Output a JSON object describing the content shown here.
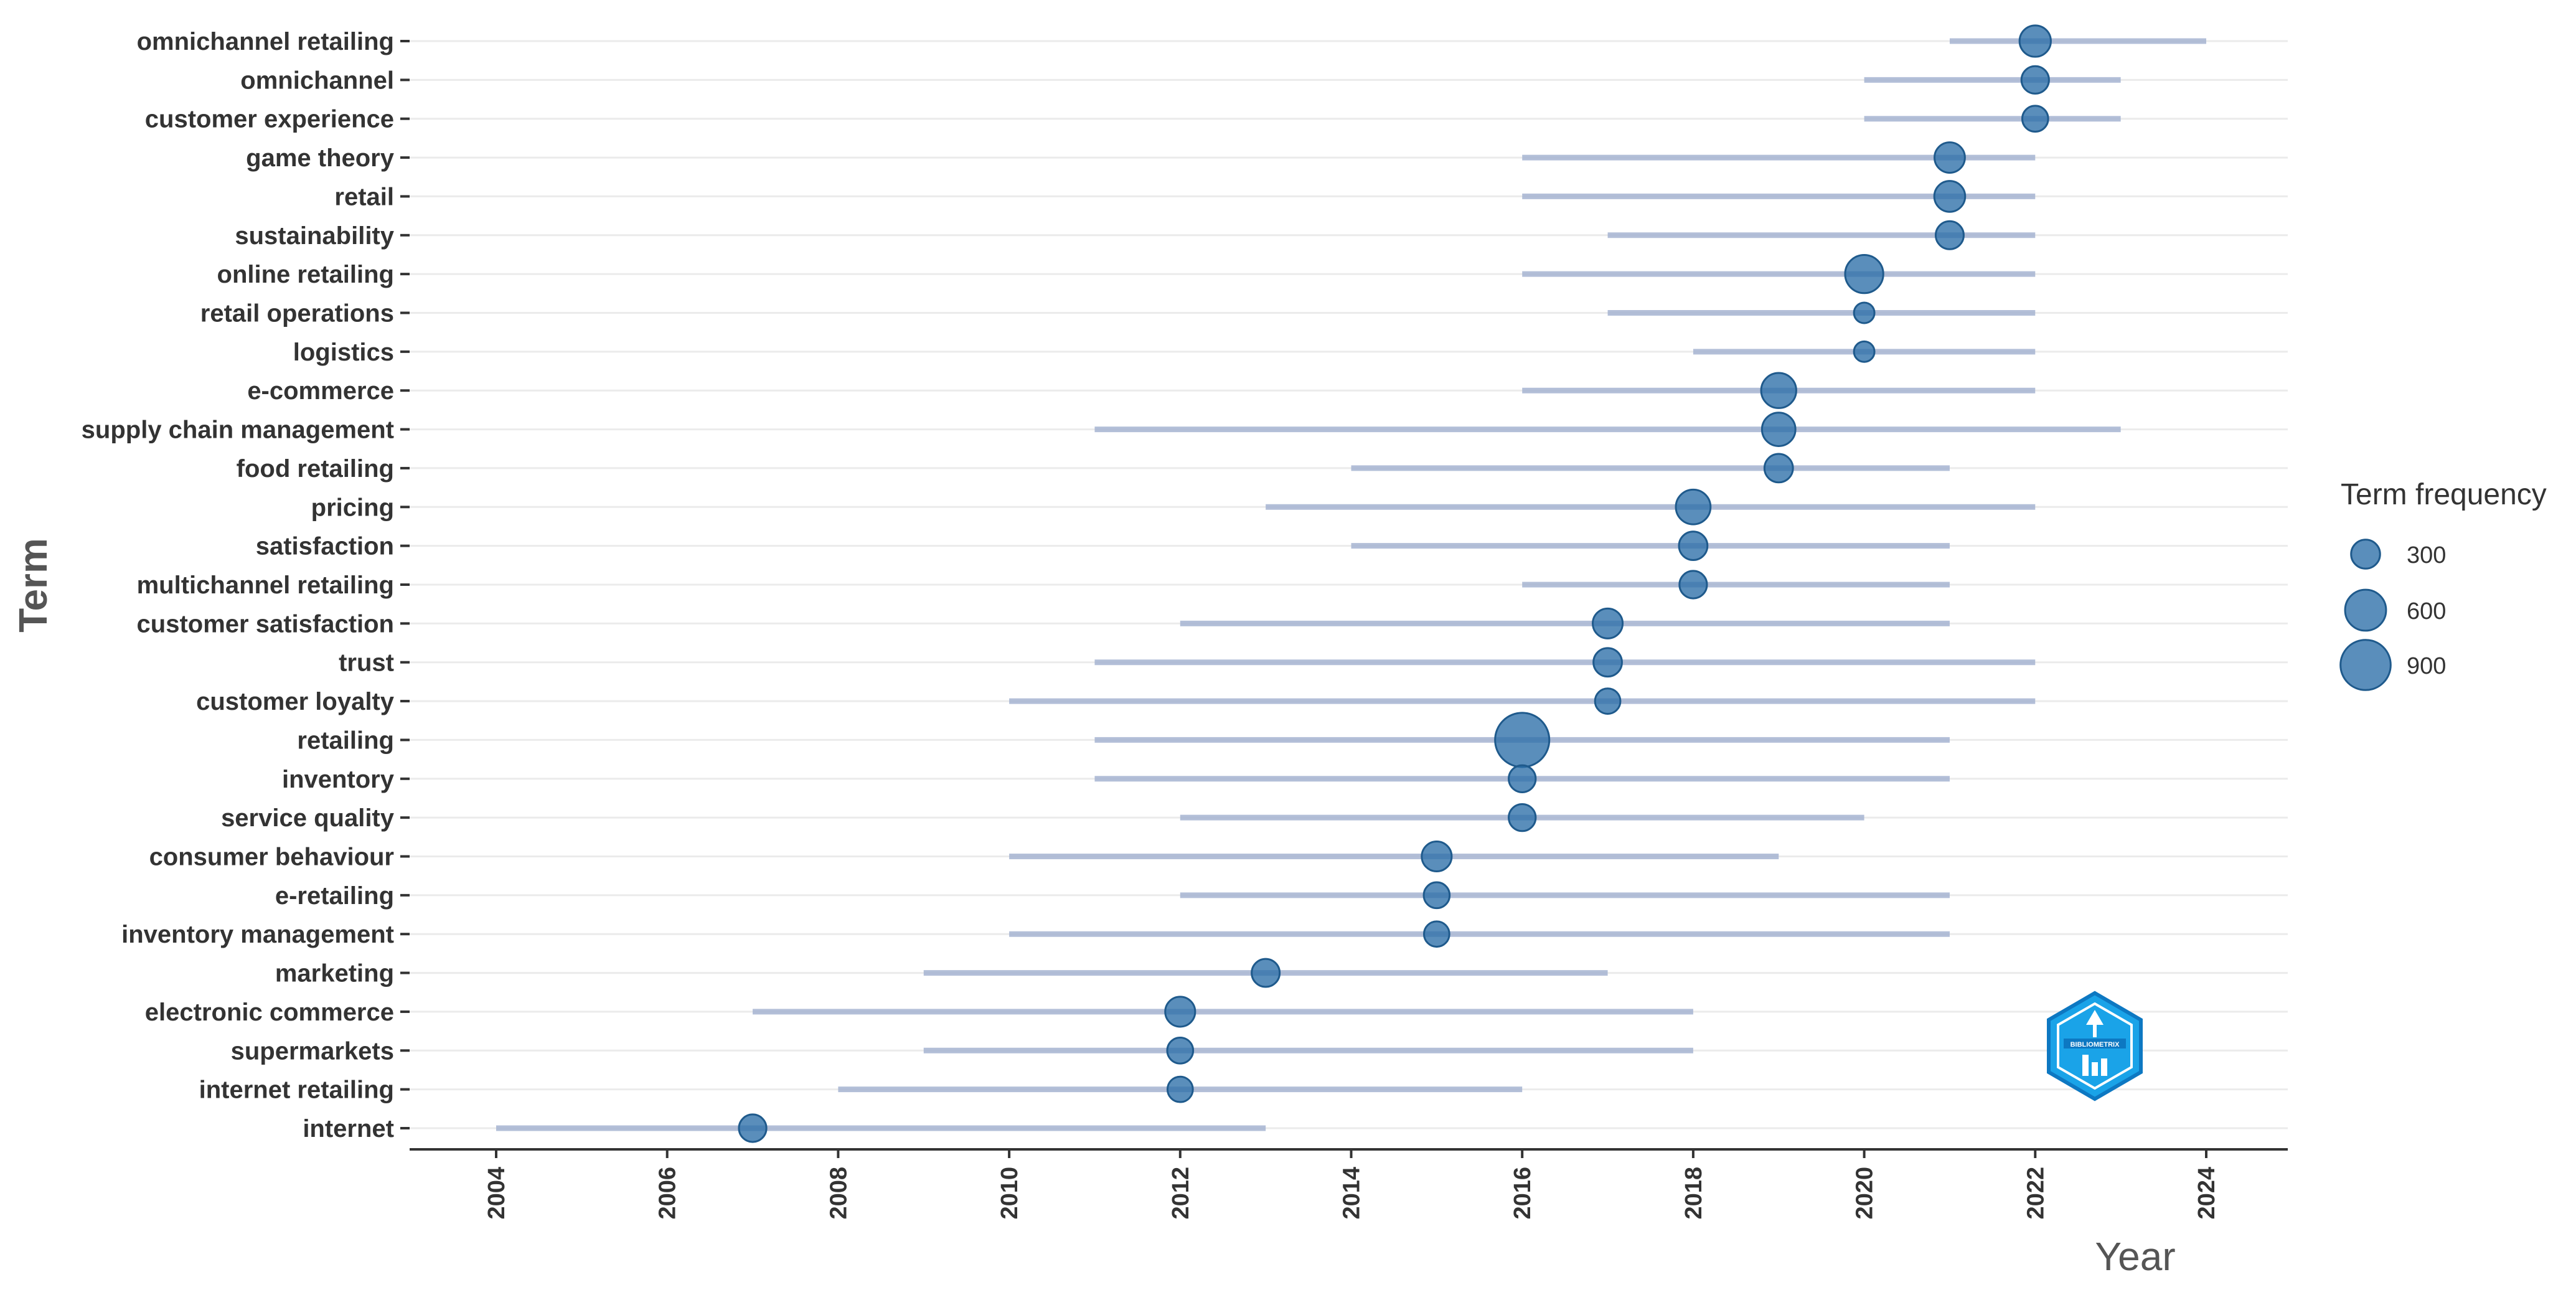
{
  "chart_data": {
    "type": "scatter",
    "xlabel": "Year",
    "ylabel": "Term",
    "xlim": [
      2003,
      2025
    ],
    "x_ticks": [
      2004,
      2006,
      2008,
      2010,
      2012,
      2014,
      2016,
      2018,
      2020,
      2022,
      2024
    ],
    "legend": {
      "title": "Term frequency",
      "placement": "right",
      "sizes": [
        300,
        600,
        900
      ],
      "labels": [
        "300",
        "600",
        "900"
      ]
    },
    "colors": {
      "point": "#2b6ea8",
      "range": "#a6b4d2"
    },
    "terms": [
      {
        "term": "omnichannel retailing",
        "start": 2021,
        "median": 2022,
        "end": 2024,
        "freq": 350
      },
      {
        "term": "omnichannel",
        "start": 2020,
        "median": 2022,
        "end": 2023,
        "freq": 270
      },
      {
        "term": "customer experience",
        "start": 2020,
        "median": 2022,
        "end": 2023,
        "freq": 240
      },
      {
        "term": "game theory",
        "start": 2016,
        "median": 2021,
        "end": 2022,
        "freq": 330
      },
      {
        "term": "retail",
        "start": 2016,
        "median": 2021,
        "end": 2022,
        "freq": 340
      },
      {
        "term": "sustainability",
        "start": 2017,
        "median": 2021,
        "end": 2022,
        "freq": 280
      },
      {
        "term": "online retailing",
        "start": 2016,
        "median": 2020,
        "end": 2022,
        "freq": 520
      },
      {
        "term": "retail operations",
        "start": 2017,
        "median": 2020,
        "end": 2022,
        "freq": 150
      },
      {
        "term": "logistics",
        "start": 2018,
        "median": 2020,
        "end": 2022,
        "freq": 150
      },
      {
        "term": "e-commerce",
        "start": 2016,
        "median": 2019,
        "end": 2022,
        "freq": 440
      },
      {
        "term": "supply chain management",
        "start": 2011,
        "median": 2019,
        "end": 2023,
        "freq": 400
      },
      {
        "term": "food retailing",
        "start": 2014,
        "median": 2019,
        "end": 2021,
        "freq": 290
      },
      {
        "term": "pricing",
        "start": 2013,
        "median": 2018,
        "end": 2022,
        "freq": 430
      },
      {
        "term": "satisfaction",
        "start": 2014,
        "median": 2018,
        "end": 2021,
        "freq": 290
      },
      {
        "term": "multichannel retailing",
        "start": 2016,
        "median": 2018,
        "end": 2021,
        "freq": 270
      },
      {
        "term": "customer satisfaction",
        "start": 2012,
        "median": 2017,
        "end": 2021,
        "freq": 320
      },
      {
        "term": "trust",
        "start": 2011,
        "median": 2017,
        "end": 2022,
        "freq": 290
      },
      {
        "term": "customer loyalty",
        "start": 2010,
        "median": 2017,
        "end": 2022,
        "freq": 230
      },
      {
        "term": "retailing",
        "start": 2011,
        "median": 2016,
        "end": 2021,
        "freq": 1050
      },
      {
        "term": "inventory",
        "start": 2011,
        "median": 2016,
        "end": 2021,
        "freq": 260
      },
      {
        "term": "service quality",
        "start": 2012,
        "median": 2016,
        "end": 2020,
        "freq": 260
      },
      {
        "term": "consumer behaviour",
        "start": 2010,
        "median": 2015,
        "end": 2019,
        "freq": 320
      },
      {
        "term": "e-retailing",
        "start": 2012,
        "median": 2015,
        "end": 2021,
        "freq": 240
      },
      {
        "term": "inventory management",
        "start": 2010,
        "median": 2015,
        "end": 2021,
        "freq": 230
      },
      {
        "term": "marketing",
        "start": 2009,
        "median": 2013,
        "end": 2017,
        "freq": 280
      },
      {
        "term": "electronic commerce",
        "start": 2007,
        "median": 2012,
        "end": 2018,
        "freq": 320
      },
      {
        "term": "supermarkets",
        "start": 2009,
        "median": 2012,
        "end": 2018,
        "freq": 240
      },
      {
        "term": "internet retailing",
        "start": 2008,
        "median": 2012,
        "end": 2016,
        "freq": 230
      },
      {
        "term": "internet",
        "start": 2004,
        "median": 2007,
        "end": 2013,
        "freq": 270
      }
    ]
  },
  "logo": {
    "text": "BIBLIOMETRIX"
  }
}
